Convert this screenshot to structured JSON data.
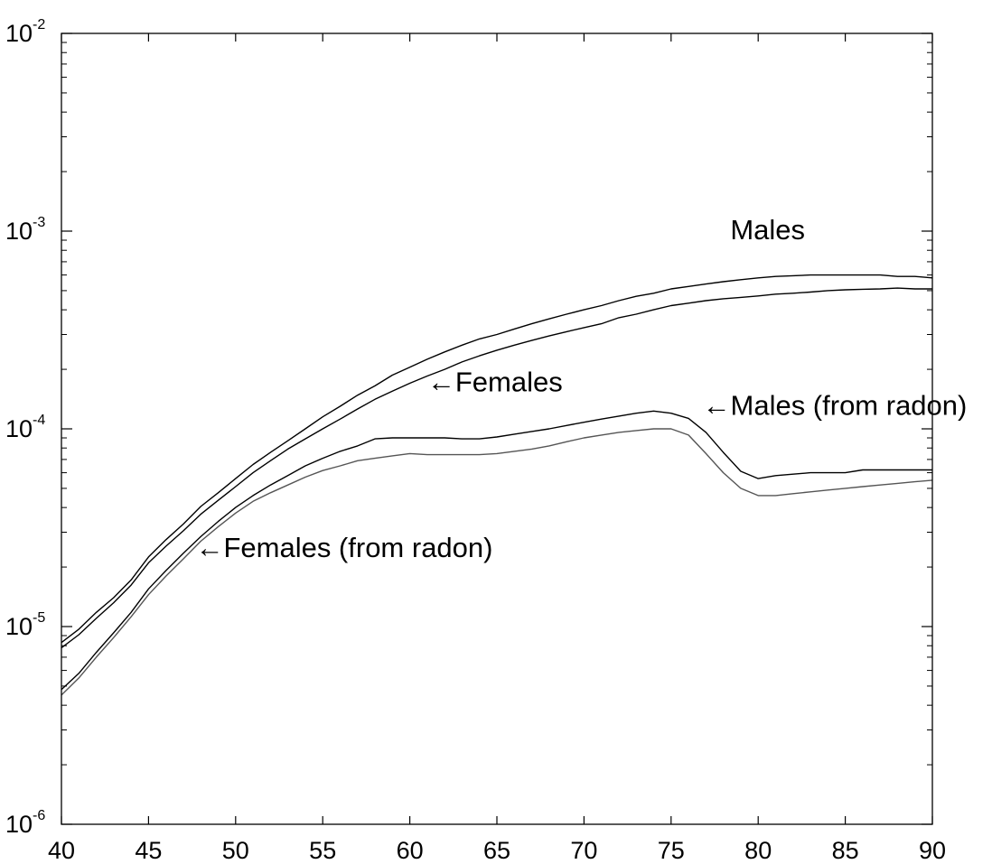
{
  "chart_data": {
    "type": "line",
    "title": "",
    "xlabel": "",
    "ylabel": "",
    "xlim": [
      40,
      90
    ],
    "ylim": [
      1e-06,
      0.01
    ],
    "y_scale": "log",
    "grid": false,
    "x_ticks": [
      40,
      45,
      50,
      55,
      60,
      65,
      70,
      75,
      80,
      85,
      90
    ],
    "y_ticks": [
      {
        "value": 1e-06,
        "base": "10",
        "exp": "-6"
      },
      {
        "value": 1e-05,
        "base": "10",
        "exp": "-5"
      },
      {
        "value": 0.0001,
        "base": "10",
        "exp": "-4"
      },
      {
        "value": 0.001,
        "base": "10",
        "exp": "-3"
      },
      {
        "value": 0.01,
        "base": "10",
        "exp": "-2"
      }
    ],
    "annotations": [
      {
        "text": "Males",
        "x": 78.4,
        "y": 0.00091
      },
      {
        "text": "←Females",
        "x": 61.0,
        "y": 0.000155
      },
      {
        "text": "←Males (from radon)",
        "x": 76.8,
        "y": 0.000118
      },
      {
        "text": "←Females (from radon)",
        "x": 47.7,
        "y": 2.25e-05
      }
    ],
    "series": [
      {
        "color": "#000000",
        "x": [
          40,
          41,
          42,
          43,
          44,
          45,
          46,
          47,
          48,
          49,
          50,
          51,
          52,
          53,
          54,
          55,
          56,
          57,
          58,
          59,
          60,
          61,
          62,
          63,
          64,
          65,
          66,
          67,
          68,
          69,
          70,
          71,
          72,
          73,
          74,
          75,
          76,
          77,
          78,
          79,
          80,
          81,
          82,
          83,
          84,
          85,
          86,
          87,
          88,
          89,
          90
        ],
        "values": [
          8.3e-06,
          9.7e-06,
          1.18e-05,
          1.4e-05,
          1.72e-05,
          2.25e-05,
          2.75e-05,
          3.3e-05,
          4.05e-05,
          4.75e-05,
          5.6e-05,
          6.6e-05,
          7.6e-05,
          8.7e-05,
          0.0001,
          0.000115,
          0.00013,
          0.000148,
          0.000165,
          0.000187,
          0.000205,
          0.000225,
          0.000245,
          0.000265,
          0.000285,
          0.0003,
          0.00032,
          0.00034,
          0.00036,
          0.00038,
          0.0004,
          0.00042,
          0.000445,
          0.000468,
          0.000485,
          0.00051,
          0.000525,
          0.00054,
          0.000555,
          0.000568,
          0.00058,
          0.00059,
          0.000595,
          0.0006,
          0.0006,
          0.0006,
          0.0006,
          0.0006,
          0.00059,
          0.00059,
          0.00058
        ]
      },
      {
        "color": "#000000",
        "x": [
          40,
          41,
          42,
          43,
          44,
          45,
          46,
          47,
          48,
          49,
          50,
          51,
          52,
          53,
          54,
          55,
          56,
          57,
          58,
          59,
          60,
          61,
          62,
          63,
          64,
          65,
          66,
          67,
          68,
          69,
          70,
          71,
          72,
          73,
          74,
          75,
          76,
          77,
          78,
          79,
          80,
          81,
          82,
          83,
          84,
          85,
          86,
          87,
          88,
          89,
          90
        ],
        "values": [
          7.8e-06,
          9.1e-06,
          1.1e-05,
          1.32e-05,
          1.62e-05,
          2.1e-05,
          2.55e-05,
          3.05e-05,
          3.7e-05,
          4.35e-05,
          5.1e-05,
          6e-05,
          6.9e-05,
          7.9e-05,
          8.9e-05,
          0.0001,
          0.000112,
          0.000126,
          0.000141,
          0.000155,
          0.00017,
          0.000185,
          0.0002,
          0.000218,
          0.000234,
          0.00025,
          0.000265,
          0.00028,
          0.000295,
          0.00031,
          0.000325,
          0.00034,
          0.000365,
          0.00038,
          0.0004,
          0.00042,
          0.000432,
          0.000445,
          0.000455,
          0.000462,
          0.00047,
          0.00048,
          0.000485,
          0.000492,
          0.0005,
          0.000505,
          0.000508,
          0.00051,
          0.000515,
          0.00051,
          0.00051
        ]
      },
      {
        "color": "#000000",
        "x": [
          40,
          41,
          42,
          43,
          44,
          45,
          46,
          47,
          48,
          49,
          50,
          51,
          52,
          53,
          54,
          55,
          56,
          57,
          58,
          59,
          60,
          61,
          62,
          63,
          64,
          65,
          66,
          67,
          68,
          69,
          70,
          71,
          72,
          73,
          74,
          75,
          76,
          77,
          78,
          79,
          80,
          81,
          82,
          83,
          84,
          85,
          86,
          87,
          88,
          89,
          90
        ],
        "values": [
          4.8e-06,
          5.8e-06,
          7.4e-06,
          9.3e-06,
          1.18e-05,
          1.55e-05,
          1.92e-05,
          2.35e-05,
          2.85e-05,
          3.4e-05,
          4e-05,
          4.6e-05,
          5.2e-05,
          5.8e-05,
          6.5e-05,
          7.1e-05,
          7.7e-05,
          8.2e-05,
          8.9e-05,
          9e-05,
          9e-05,
          9e-05,
          9e-05,
          8.9e-05,
          8.9e-05,
          9.1e-05,
          9.4e-05,
          9.7e-05,
          0.0001,
          0.000104,
          0.000108,
          0.000112,
          0.000116,
          0.00012,
          0.000123,
          0.00012,
          0.000113,
          9.6e-05,
          7.6e-05,
          6.1e-05,
          5.6e-05,
          5.8e-05,
          5.9e-05,
          6e-05,
          6e-05,
          6e-05,
          6.2e-05,
          6.2e-05,
          6.2e-05,
          6.2e-05,
          6.2e-05
        ]
      },
      {
        "color": "#555555",
        "x": [
          40,
          41,
          42,
          43,
          44,
          45,
          46,
          47,
          48,
          49,
          50,
          51,
          52,
          53,
          54,
          55,
          56,
          57,
          58,
          59,
          60,
          61,
          62,
          63,
          64,
          65,
          66,
          67,
          68,
          69,
          70,
          71,
          72,
          73,
          74,
          75,
          76,
          77,
          78,
          79,
          80,
          81,
          82,
          83,
          84,
          85,
          86,
          87,
          88,
          89,
          90
        ],
        "values": [
          4.5e-06,
          5.5e-06,
          7e-06,
          8.8e-06,
          1.12e-05,
          1.45e-05,
          1.8e-05,
          2.2e-05,
          2.7e-05,
          3.2e-05,
          3.75e-05,
          4.3e-05,
          4.75e-05,
          5.2e-05,
          5.7e-05,
          6.15e-05,
          6.5e-05,
          6.9e-05,
          7.1e-05,
          7.3e-05,
          7.5e-05,
          7.4e-05,
          7.4e-05,
          7.4e-05,
          7.4e-05,
          7.5e-05,
          7.7e-05,
          7.9e-05,
          8.2e-05,
          8.6e-05,
          9e-05,
          9.3e-05,
          9.6e-05,
          9.8e-05,
          0.0001,
          0.0001,
          9.3e-05,
          7.5e-05,
          6e-05,
          5e-05,
          4.6e-05,
          4.6e-05,
          4.7e-05,
          4.8e-05,
          4.9e-05,
          5e-05,
          5.1e-05,
          5.2e-05,
          5.3e-05,
          5.4e-05,
          5.5e-05
        ]
      }
    ]
  }
}
